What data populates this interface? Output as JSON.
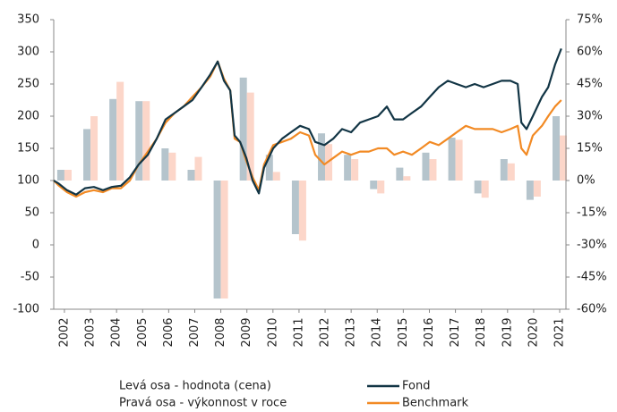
{
  "chart_data": {
    "type": "line",
    "ylim": [
      -100,
      350
    ],
    "yticks": [
      350,
      300,
      250,
      200,
      150,
      100,
      50,
      0,
      -50,
      -100
    ],
    "y2lim": [
      -60,
      75
    ],
    "y2ticks": [
      {
        "value": 75,
        "label": "75%"
      },
      {
        "value": 60,
        "label": "60%"
      },
      {
        "value": 45,
        "label": "45%"
      },
      {
        "value": 30,
        "label": "30%"
      },
      {
        "value": 15,
        "label": "15%"
      },
      {
        "value": 0,
        "label": "0%"
      },
      {
        "value": -15,
        "label": "-15%"
      },
      {
        "value": -30,
        "label": "-30%"
      },
      {
        "value": -45,
        "label": "-45%"
      },
      {
        "value": -60,
        "label": "-60%"
      }
    ],
    "xlim": [
      2001.59,
      2021.24
    ],
    "xticks": [
      2002,
      2003,
      2004,
      2005,
      2006,
      2007,
      2008,
      2009,
      2010,
      2011,
      2012,
      2013,
      2014,
      2015,
      2016,
      2017,
      2018,
      2019,
      2020,
      2021
    ],
    "left_axis_note": "Levá osa - hodnota (cena)",
    "right_axis_note": "Pravá osa - výkonnost v roce",
    "bar_series": [
      {
        "color": "#b5c4cc",
        "axis": "y2",
        "values": [
          5,
          24,
          38,
          37,
          15,
          5,
          -55,
          48,
          12,
          -25,
          22,
          12,
          -4,
          6,
          13,
          20,
          -6,
          10,
          -9,
          30
        ]
      },
      {
        "color": "#fcd6c9",
        "axis": "y2",
        "values": [
          5,
          30,
          46,
          37,
          13,
          11,
          -55,
          41,
          4,
          -28,
          17,
          10,
          -6,
          2,
          10,
          19,
          -8,
          8,
          -7.5,
          21
        ]
      }
    ],
    "x": [
      2001.59,
      2001.79,
      2002.1,
      2002.45,
      2002.79,
      2003.13,
      2003.48,
      2003.82,
      2004.17,
      2004.51,
      2004.85,
      2005.2,
      2005.54,
      2005.88,
      2006.23,
      2006.57,
      2006.91,
      2007.26,
      2007.6,
      2007.88,
      2008.12,
      2008.36,
      2008.53,
      2008.74,
      2008.98,
      2009.22,
      2009.46,
      2009.66,
      2010.01,
      2010.35,
      2010.69,
      2011.04,
      2011.38,
      2011.62,
      2011.97,
      2012.31,
      2012.65,
      2013.0,
      2013.34,
      2013.68,
      2014.03,
      2014.37,
      2014.65,
      2014.99,
      2015.33,
      2015.68,
      2016.02,
      2016.36,
      2016.71,
      2017.05,
      2017.4,
      2017.74,
      2018.08,
      2018.43,
      2018.77,
      2019.11,
      2019.39,
      2019.53,
      2019.73,
      2019.97,
      2020.32,
      2020.56,
      2020.82,
      2021.06
    ],
    "series": [
      {
        "name": "Fond",
        "color": "#123545",
        "values": [
          100,
          95,
          85,
          78,
          88,
          90,
          85,
          90,
          92,
          105,
          125,
          140,
          165,
          195,
          205,
          215,
          225,
          245,
          265,
          285,
          255,
          240,
          170,
          160,
          135,
          100,
          80,
          120,
          150,
          165,
          175,
          185,
          180,
          160,
          155,
          165,
          180,
          175,
          190,
          195,
          200,
          215,
          195,
          195,
          205,
          215,
          230,
          245,
          255,
          250,
          245,
          250,
          245,
          250,
          255,
          255,
          250,
          190,
          180,
          200,
          230,
          245,
          280,
          305
        ]
      },
      {
        "name": "Benchmark",
        "color": "#f28a24",
        "values": [
          100,
          92,
          82,
          75,
          82,
          85,
          82,
          88,
          88,
          100,
          125,
          145,
          165,
          190,
          205,
          215,
          230,
          245,
          262,
          285,
          258,
          240,
          165,
          160,
          130,
          105,
          85,
          125,
          155,
          160,
          165,
          175,
          170,
          140,
          125,
          135,
          145,
          140,
          145,
          145,
          150,
          150,
          140,
          145,
          140,
          150,
          160,
          155,
          165,
          175,
          185,
          180,
          180,
          180,
          175,
          180,
          185,
          150,
          140,
          170,
          185,
          200,
          215,
          225
        ]
      }
    ]
  }
}
